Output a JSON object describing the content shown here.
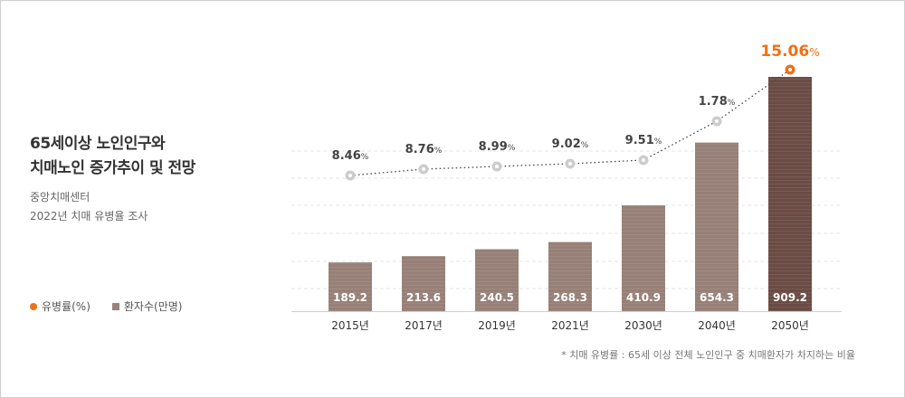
{
  "title_lines": [
    "65세이상 노인인구와",
    "치매노인 증가추이 및 전망"
  ],
  "source": "중앙치매센터",
  "survey": "2022년 치매 유병율 조사",
  "legend": {
    "rate": "유병률(%)",
    "patients": "환자수(만명)"
  },
  "footnote": "* 치매 유병률 : 65세 이상 전체 노인인구 중 치매환자가 차지하는 비율",
  "colors": {
    "accent": "#f07015",
    "bar": "#978077",
    "bar_last": "#6b4c45",
    "point": "#cccccc"
  },
  "chart_data": {
    "type": "bar",
    "categories": [
      "2015년",
      "2017년",
      "2019년",
      "2021년",
      "2030년",
      "2040년",
      "2050년"
    ],
    "series": [
      {
        "name": "환자수(만명)",
        "type": "bar",
        "values": [
          189.2,
          213.6,
          240.5,
          268.3,
          410.9,
          654.3,
          909.2
        ],
        "labels": [
          "189.2",
          "213.6",
          "240.5",
          "268.3",
          "410.9",
          "654.3",
          "909.2"
        ]
      },
      {
        "name": "유병률(%)",
        "type": "line",
        "values": [
          8.46,
          8.76,
          8.99,
          9.02,
          9.51,
          1.78,
          15.06
        ],
        "labels": [
          "8.46",
          "8.76",
          "8.99",
          "9.02",
          "9.51",
          "1.78",
          "15.06"
        ],
        "unit": "%"
      }
    ],
    "ylim": [
      0,
      1000
    ],
    "grid": true,
    "legend_position": "left"
  }
}
